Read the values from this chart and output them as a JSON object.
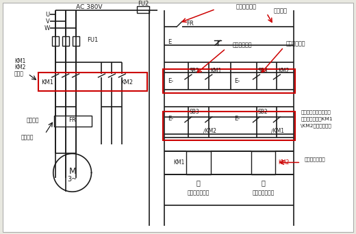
{
  "bg_color": "#e8e8e0",
  "line_color": "#1a1a1a",
  "red_color": "#cc0000",
  "labels": {
    "AC380V": "AC 380V",
    "FU2": "FU2",
    "FU1": "FU1",
    "FR_label": "FR",
    "KM1_label": "KM1",
    "KM2_label": "KM2",
    "main_contact": "主触点",
    "thermal_relay": "热继电器",
    "thermal_switch": "热继电器开关",
    "stop_btn": "停止按鈕",
    "fwd_start": "正转启动按鈕",
    "rev_start": "反转启动按鈕",
    "interlock": "正反转互锁，常闭触点",
    "interlock2": "通电断开，保证KM1",
    "interlock3": "\\KM2不会同时工作",
    "fwd_coil_label": "正转接触器线圈",
    "rev_coil_label": "反转接触器线圈",
    "KM1_coil": "KM1",
    "KM2_coil": "KM2",
    "U": "U",
    "V": "V",
    "W": "W",
    "M": "M",
    "three_phase": "3~",
    "fwd": "正",
    "rev": "反",
    "E": "E"
  }
}
